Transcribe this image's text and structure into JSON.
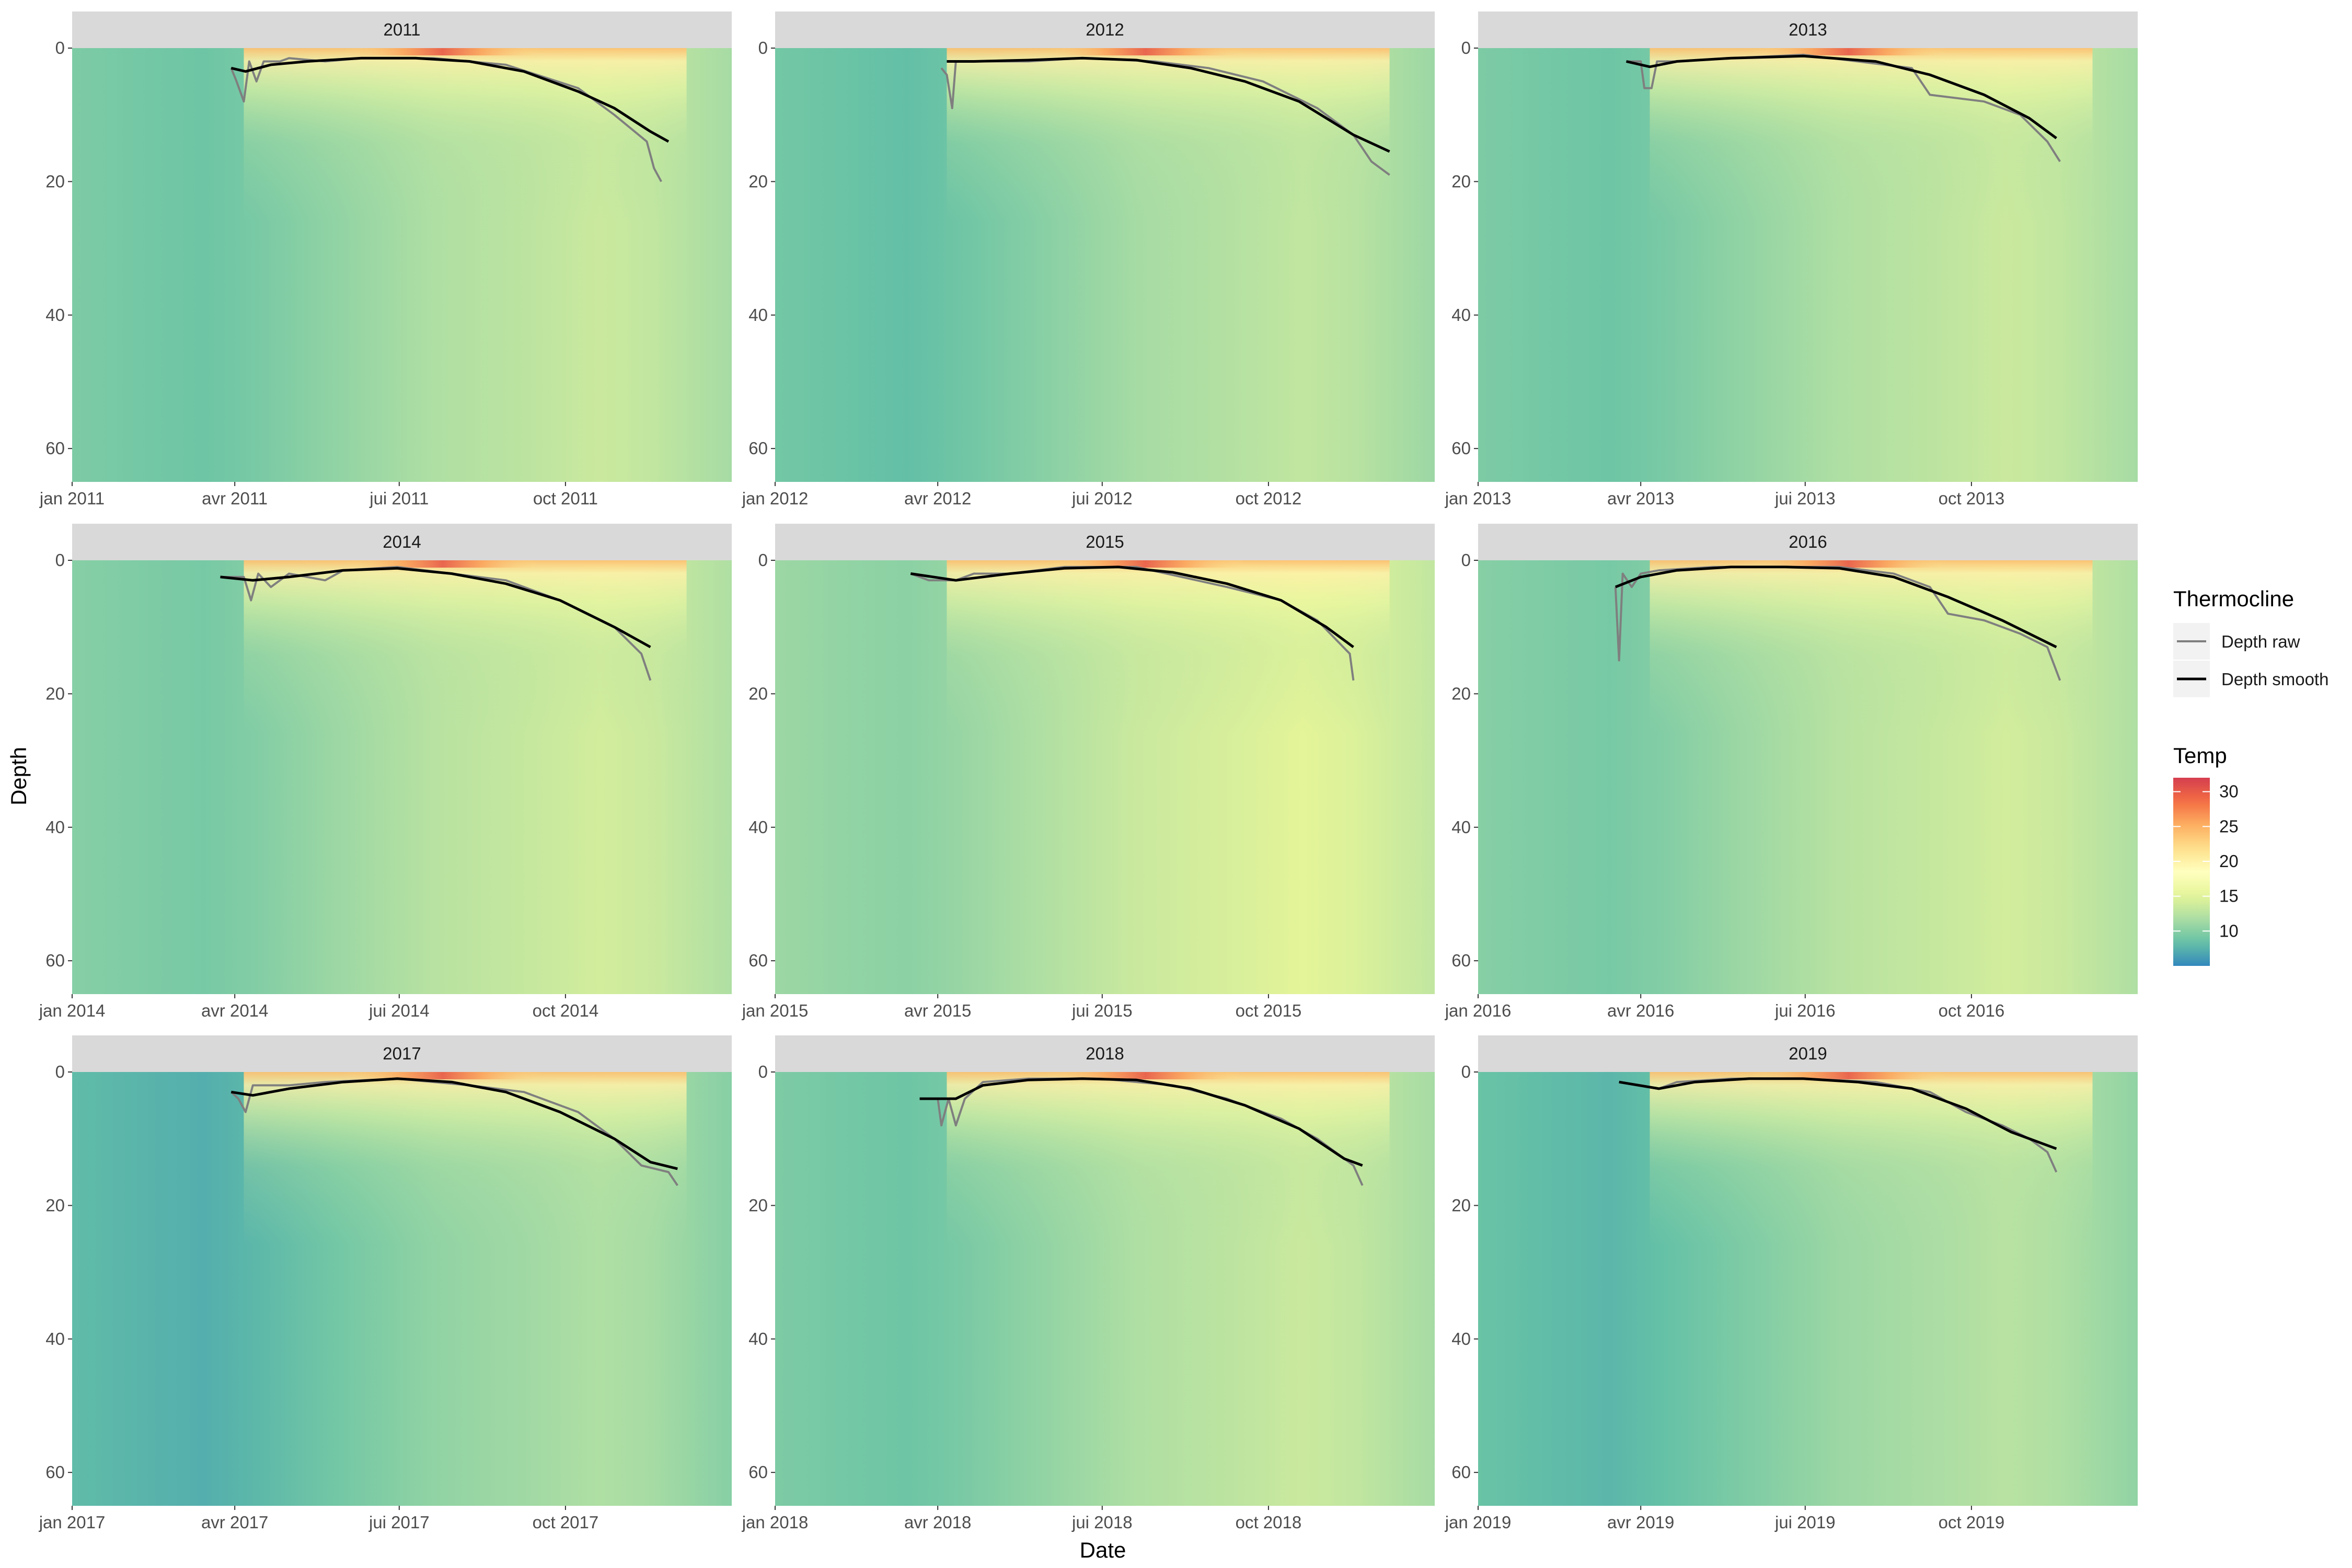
{
  "chart_data": {
    "type": "heatmap",
    "facet_by": "year",
    "xlabel": "Date",
    "ylabel": "Depth",
    "y_reversed": true,
    "ylim": [
      65,
      0
    ],
    "y_ticks": [
      0,
      20,
      40,
      60
    ],
    "x_tick_months": [
      "jan",
      "avr",
      "jui",
      "oct"
    ],
    "colorbar": {
      "title": "Temp",
      "ticks": [
        10,
        15,
        20,
        25,
        30
      ],
      "range": [
        5,
        32
      ],
      "palette": [
        "#3288bd",
        "#66c2a5",
        "#abdda4",
        "#e6f598",
        "#ffffbf",
        "#fee08b",
        "#fdae61",
        "#f46d43",
        "#d53e4f"
      ]
    },
    "legend": {
      "title": "Thermocline",
      "placement": "right",
      "entries": [
        {
          "label": "Depth raw",
          "color": "#7f7f7f"
        },
        {
          "label": "Depth smooth",
          "color": "#000000"
        }
      ]
    },
    "panels": [
      {
        "year": "2011",
        "x_tick_labels": [
          "jan 2011",
          "avr 2011",
          "jui 2011",
          "oct 2011"
        ],
        "cold_base_temp": 9.0,
        "raw": [
          [
            88,
            3
          ],
          [
            91,
            5
          ],
          [
            95,
            8
          ],
          [
            98,
            2
          ],
          [
            102,
            5
          ],
          [
            106,
            2
          ],
          [
            115,
            2
          ],
          [
            120,
            1.5
          ],
          [
            140,
            2
          ],
          [
            160,
            1.5
          ],
          [
            200,
            1.5
          ],
          [
            240,
            2.5
          ],
          [
            280,
            6
          ],
          [
            300,
            10
          ],
          [
            318,
            14
          ],
          [
            322,
            18
          ],
          [
            326,
            20
          ]
        ],
        "smooth": [
          [
            88,
            3
          ],
          [
            96,
            3.5
          ],
          [
            110,
            2.5
          ],
          [
            130,
            2
          ],
          [
            160,
            1.5
          ],
          [
            190,
            1.5
          ],
          [
            220,
            2
          ],
          [
            250,
            3.5
          ],
          [
            280,
            6.5
          ],
          [
            300,
            9
          ],
          [
            320,
            12.5
          ],
          [
            330,
            14
          ]
        ]
      },
      {
        "year": "2012",
        "x_tick_labels": [
          "jan 2012",
          "avr 2012",
          "jui 2012",
          "oct 2012"
        ],
        "cold_base_temp": 8.5,
        "raw": [
          [
            92,
            3
          ],
          [
            95,
            4
          ],
          [
            98,
            9
          ],
          [
            100,
            2
          ],
          [
            110,
            2
          ],
          [
            140,
            2
          ],
          [
            170,
            1.5
          ],
          [
            210,
            2
          ],
          [
            240,
            3
          ],
          [
            270,
            5
          ],
          [
            300,
            9
          ],
          [
            320,
            13
          ],
          [
            330,
            17
          ],
          [
            340,
            19
          ]
        ],
        "smooth": [
          [
            95,
            2
          ],
          [
            110,
            2
          ],
          [
            140,
            1.8
          ],
          [
            170,
            1.5
          ],
          [
            200,
            1.8
          ],
          [
            230,
            3
          ],
          [
            260,
            5
          ],
          [
            290,
            8
          ],
          [
            320,
            13
          ],
          [
            340,
            15.5
          ]
        ]
      },
      {
        "year": "2013",
        "x_tick_labels": [
          "jan 2013",
          "avr 2013",
          "jui 2013",
          "oct 2013"
        ],
        "cold_base_temp": 9.0,
        "raw": [
          [
            82,
            2
          ],
          [
            90,
            2
          ],
          [
            92,
            6
          ],
          [
            96,
            6
          ],
          [
            99,
            2
          ],
          [
            110,
            2
          ],
          [
            140,
            1.5
          ],
          [
            180,
            1
          ],
          [
            210,
            2
          ],
          [
            240,
            3
          ],
          [
            250,
            7
          ],
          [
            280,
            8
          ],
          [
            300,
            10
          ],
          [
            315,
            14
          ],
          [
            322,
            17
          ]
        ],
        "smooth": [
          [
            82,
            2
          ],
          [
            95,
            2.8
          ],
          [
            110,
            2
          ],
          [
            140,
            1.5
          ],
          [
            180,
            1.2
          ],
          [
            220,
            2
          ],
          [
            250,
            4
          ],
          [
            280,
            7
          ],
          [
            305,
            10.5
          ],
          [
            320,
            13.5
          ]
        ]
      },
      {
        "year": "2014",
        "x_tick_labels": [
          "jan 2014",
          "avr 2014",
          "jui 2014",
          "oct 2014"
        ],
        "cold_base_temp": 9.5,
        "raw": [
          [
            82,
            2.5
          ],
          [
            95,
            2.5
          ],
          [
            99,
            6
          ],
          [
            103,
            2
          ],
          [
            110,
            4
          ],
          [
            120,
            2
          ],
          [
            140,
            3
          ],
          [
            150,
            1.5
          ],
          [
            180,
            1
          ],
          [
            210,
            2
          ],
          [
            240,
            3
          ],
          [
            270,
            6
          ],
          [
            300,
            10
          ],
          [
            315,
            14
          ],
          [
            320,
            18
          ]
        ],
        "smooth": [
          [
            82,
            2.5
          ],
          [
            100,
            3
          ],
          [
            120,
            2.5
          ],
          [
            150,
            1.5
          ],
          [
            180,
            1.2
          ],
          [
            210,
            2
          ],
          [
            240,
            3.5
          ],
          [
            270,
            6
          ],
          [
            300,
            10
          ],
          [
            320,
            13
          ]
        ]
      },
      {
        "year": "2015",
        "x_tick_labels": [
          "jan 2015",
          "avr 2015",
          "jui 2015",
          "oct 2015"
        ],
        "cold_base_temp": 10.5,
        "raw": [
          [
            75,
            2
          ],
          [
            85,
            3
          ],
          [
            100,
            3
          ],
          [
            110,
            2
          ],
          [
            130,
            2
          ],
          [
            160,
            1
          ],
          [
            200,
            1
          ],
          [
            250,
            4
          ],
          [
            280,
            6
          ],
          [
            300,
            9
          ],
          [
            318,
            14
          ],
          [
            320,
            18
          ]
        ],
        "smooth": [
          [
            75,
            2
          ],
          [
            100,
            3
          ],
          [
            130,
            2
          ],
          [
            160,
            1.2
          ],
          [
            190,
            1
          ],
          [
            220,
            1.8
          ],
          [
            250,
            3.5
          ],
          [
            280,
            6
          ],
          [
            305,
            10
          ],
          [
            320,
            13
          ]
        ]
      },
      {
        "year": "2016",
        "x_tick_labels": [
          "jan 2016",
          "avr 2016",
          "jui 2016",
          "oct 2016"
        ],
        "cold_base_temp": 9.5,
        "raw": [
          [
            76,
            4
          ],
          [
            78,
            15
          ],
          [
            80,
            2
          ],
          [
            85,
            4
          ],
          [
            90,
            2
          ],
          [
            100,
            1.5
          ],
          [
            130,
            1
          ],
          [
            160,
            1
          ],
          [
            200,
            1
          ],
          [
            230,
            2
          ],
          [
            250,
            4
          ],
          [
            260,
            8
          ],
          [
            280,
            9
          ],
          [
            300,
            11
          ],
          [
            315,
            13
          ],
          [
            322,
            18
          ]
        ],
        "smooth": [
          [
            76,
            4
          ],
          [
            90,
            2.5
          ],
          [
            110,
            1.5
          ],
          [
            140,
            1
          ],
          [
            170,
            1
          ],
          [
            200,
            1.2
          ],
          [
            230,
            2.5
          ],
          [
            260,
            5.5
          ],
          [
            290,
            9
          ],
          [
            320,
            13
          ]
        ]
      },
      {
        "year": "2017",
        "x_tick_labels": [
          "jan 2017",
          "avr 2017",
          "jui 2017",
          "oct 2017"
        ],
        "cold_base_temp": 7.5,
        "raw": [
          [
            88,
            3
          ],
          [
            92,
            4
          ],
          [
            96,
            6
          ],
          [
            100,
            2
          ],
          [
            120,
            2
          ],
          [
            140,
            1.5
          ],
          [
            180,
            1
          ],
          [
            220,
            2
          ],
          [
            250,
            3
          ],
          [
            280,
            6
          ],
          [
            300,
            10
          ],
          [
            315,
            14
          ],
          [
            330,
            15
          ],
          [
            335,
            17
          ]
        ],
        "smooth": [
          [
            88,
            3
          ],
          [
            100,
            3.5
          ],
          [
            120,
            2.5
          ],
          [
            150,
            1.5
          ],
          [
            180,
            1
          ],
          [
            210,
            1.5
          ],
          [
            240,
            3
          ],
          [
            270,
            6
          ],
          [
            300,
            10
          ],
          [
            320,
            13.5
          ],
          [
            335,
            14.5
          ]
        ]
      },
      {
        "year": "2018",
        "x_tick_labels": [
          "jan 2018",
          "avr 2018",
          "jui 2018",
          "oct 2018"
        ],
        "cold_base_temp": 9.0,
        "raw": [
          [
            80,
            4
          ],
          [
            90,
            4
          ],
          [
            92,
            8
          ],
          [
            96,
            4
          ],
          [
            100,
            8
          ],
          [
            105,
            4
          ],
          [
            115,
            1.5
          ],
          [
            140,
            1
          ],
          [
            180,
            1
          ],
          [
            220,
            2
          ],
          [
            250,
            4
          ],
          [
            280,
            7
          ],
          [
            300,
            10
          ],
          [
            320,
            14
          ],
          [
            325,
            17
          ]
        ],
        "smooth": [
          [
            80,
            4
          ],
          [
            100,
            4
          ],
          [
            115,
            2
          ],
          [
            140,
            1.2
          ],
          [
            170,
            1
          ],
          [
            200,
            1.2
          ],
          [
            230,
            2.5
          ],
          [
            260,
            5
          ],
          [
            290,
            8.5
          ],
          [
            315,
            13
          ],
          [
            325,
            14
          ]
        ]
      },
      {
        "year": "2019",
        "x_tick_labels": [
          "jan 2019",
          "avr 2019",
          "jui 2019",
          "oct 2019"
        ],
        "cold_base_temp": 8.0,
        "raw": [
          [
            78,
            1.5
          ],
          [
            90,
            2
          ],
          [
            100,
            2.5
          ],
          [
            110,
            1.5
          ],
          [
            140,
            1
          ],
          [
            180,
            1
          ],
          [
            220,
            1.5
          ],
          [
            250,
            3
          ],
          [
            270,
            6
          ],
          [
            290,
            8
          ],
          [
            305,
            10
          ],
          [
            315,
            12
          ],
          [
            320,
            15
          ]
        ],
        "smooth": [
          [
            78,
            1.5
          ],
          [
            100,
            2.5
          ],
          [
            120,
            1.5
          ],
          [
            150,
            1
          ],
          [
            180,
            1
          ],
          [
            210,
            1.5
          ],
          [
            240,
            2.5
          ],
          [
            270,
            5.5
          ],
          [
            295,
            9
          ],
          [
            320,
            11.5
          ]
        ]
      }
    ]
  }
}
